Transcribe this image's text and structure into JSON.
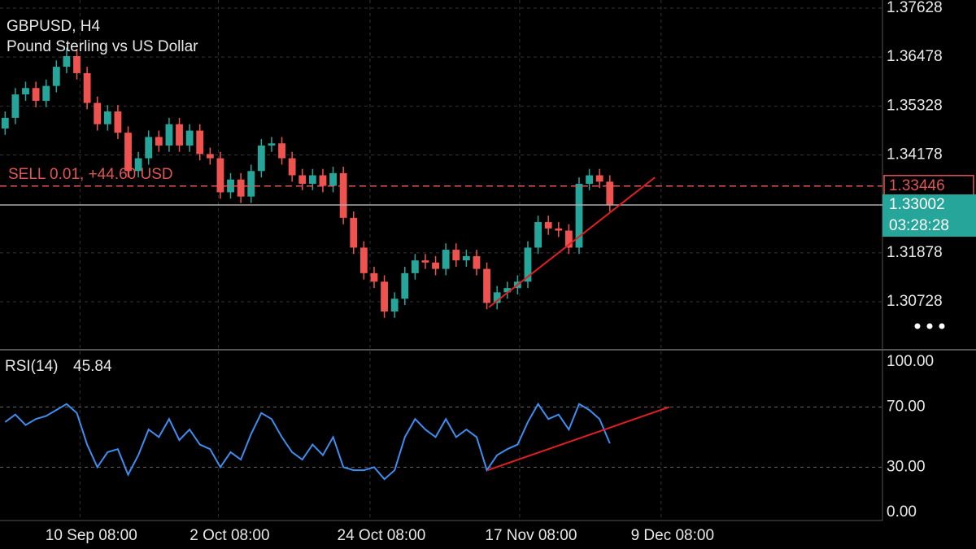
{
  "chart_data": [
    {
      "type": "candlestick",
      "title": "GBPUSD, H4",
      "subtitle": "Pound Sterling vs US Dollar",
      "up_color": "#26a69a",
      "down_color": "#ef5350",
      "open": [
        1.348,
        1.3505,
        1.356,
        1.3575,
        1.3545,
        1.358,
        1.3625,
        1.365,
        1.361,
        1.354,
        1.349,
        1.352,
        1.347,
        1.338,
        1.341,
        1.346,
        1.344,
        1.349,
        1.344,
        1.3475,
        1.342,
        1.341,
        1.333,
        1.336,
        1.332,
        1.338,
        1.344,
        1.3445,
        1.341,
        1.337,
        1.335,
        1.337,
        1.3345,
        1.3375,
        1.327,
        1.32,
        1.314,
        1.312,
        1.305,
        1.308,
        1.314,
        1.317,
        1.3165,
        1.315,
        1.3195,
        1.317,
        1.318,
        1.315,
        1.307,
        1.3095,
        1.3105,
        1.312,
        1.32,
        1.326,
        1.3245,
        1.324,
        1.32,
        1.335,
        1.337,
        1.3355
      ],
      "high": [
        1.352,
        1.3575,
        1.359,
        1.359,
        1.3595,
        1.364,
        1.367,
        1.3665,
        1.3625,
        1.3555,
        1.3535,
        1.3535,
        1.3485,
        1.3425,
        1.3475,
        1.3475,
        1.3505,
        1.3505,
        1.349,
        1.349,
        1.3435,
        1.3425,
        1.3375,
        1.3375,
        1.3395,
        1.3455,
        1.346,
        1.346,
        1.3425,
        1.3385,
        1.3385,
        1.3385,
        1.339,
        1.339,
        1.3285,
        1.3215,
        1.3155,
        1.3135,
        1.3095,
        1.3155,
        1.3185,
        1.3185,
        1.318,
        1.321,
        1.321,
        1.3195,
        1.3195,
        1.3165,
        1.311,
        1.312,
        1.3135,
        1.3215,
        1.3275,
        1.3275,
        1.326,
        1.3255,
        1.3365,
        1.3385,
        1.3385,
        1.337
      ],
      "low": [
        1.3465,
        1.349,
        1.3545,
        1.353,
        1.353,
        1.3565,
        1.361,
        1.3595,
        1.3525,
        1.3475,
        1.3475,
        1.3455,
        1.3365,
        1.3365,
        1.3395,
        1.3425,
        1.3425,
        1.3425,
        1.3425,
        1.3405,
        1.3395,
        1.3315,
        1.3315,
        1.3305,
        1.3305,
        1.3365,
        1.3425,
        1.3395,
        1.3355,
        1.3335,
        1.3335,
        1.333,
        1.333,
        1.3255,
        1.3185,
        1.3125,
        1.3105,
        1.3035,
        1.3035,
        1.3065,
        1.3125,
        1.315,
        1.3135,
        1.3135,
        1.3155,
        1.3155,
        1.3135,
        1.3055,
        1.3055,
        1.308,
        1.309,
        1.3105,
        1.3185,
        1.323,
        1.3225,
        1.3185,
        1.3185,
        1.3335,
        1.334,
        1.3285
      ],
      "close": [
        1.3505,
        1.356,
        1.3575,
        1.3545,
        1.358,
        1.3625,
        1.365,
        1.361,
        1.354,
        1.349,
        1.352,
        1.347,
        1.338,
        1.341,
        1.346,
        1.344,
        1.349,
        1.344,
        1.3475,
        1.342,
        1.341,
        1.333,
        1.336,
        1.332,
        1.338,
        1.344,
        1.3445,
        1.341,
        1.337,
        1.335,
        1.337,
        1.3345,
        1.3375,
        1.327,
        1.32,
        1.314,
        1.312,
        1.305,
        1.308,
        1.314,
        1.317,
        1.3165,
        1.315,
        1.3195,
        1.317,
        1.318,
        1.315,
        1.307,
        1.3095,
        1.3105,
        1.312,
        1.32,
        1.326,
        1.3245,
        1.324,
        1.32,
        1.335,
        1.337,
        1.3355,
        1.33
      ],
      "xlim": [
        -0.5,
        85.6
      ],
      "ylim": [
        1.29696,
        1.37819
      ],
      "yticks": [
        1.30728,
        1.31878,
        1.34178,
        1.35328,
        1.36478,
        1.37628
      ],
      "orders": [
        {
          "label": "SELL 0.01, +44.60 USD",
          "price": 1.33446,
          "color": "#e05555"
        }
      ],
      "current_price": 1.33002,
      "countdown": "03:28:28",
      "trendlines": [
        {
          "x": [
            47.2,
            63.4
          ],
          "values": [
            1.306,
            1.3365
          ],
          "color": "#e02020"
        }
      ]
    },
    {
      "type": "line",
      "title": "RSI(14)",
      "color": "#3d8ef0",
      "values": [
        60,
        65,
        58,
        62,
        64,
        68,
        72,
        66,
        45,
        30,
        40,
        42,
        25,
        38,
        55,
        50,
        62,
        48,
        55,
        45,
        42,
        30,
        40,
        35,
        52,
        66,
        62,
        50,
        40,
        35,
        45,
        38,
        50,
        30,
        28,
        28,
        30,
        22,
        28,
        50,
        62,
        55,
        50,
        62,
        50,
        55,
        50,
        28,
        38,
        42,
        45,
        60,
        72,
        62,
        65,
        55,
        72,
        68,
        62,
        45.84
      ],
      "xlim": [
        -0.5,
        85.6
      ],
      "ylim": [
        -5.5,
        107
      ],
      "yticks": [
        {
          "value": 0,
          "label": "0.00"
        },
        {
          "value": 30,
          "label": "30.00"
        },
        {
          "value": 70,
          "label": "70.00"
        },
        {
          "value": 100,
          "label": "100.00"
        }
      ],
      "levels": [
        30,
        70
      ],
      "xticks": [
        {
          "value": 7.3,
          "label": "10 Sep 08:00"
        },
        {
          "value": 20.8,
          "label": "2 Oct 08:00"
        },
        {
          "value": 35.6,
          "label": "24 Oct 08:00"
        },
        {
          "value": 50.2,
          "label": "17 Nov 08:00"
        },
        {
          "value": 64.0,
          "label": "9 Dec 08:00"
        }
      ],
      "trendlines": [
        {
          "x": [
            47.1,
            64.8
          ],
          "values": [
            28,
            70
          ],
          "color": "#e02020"
        }
      ]
    }
  ]
}
